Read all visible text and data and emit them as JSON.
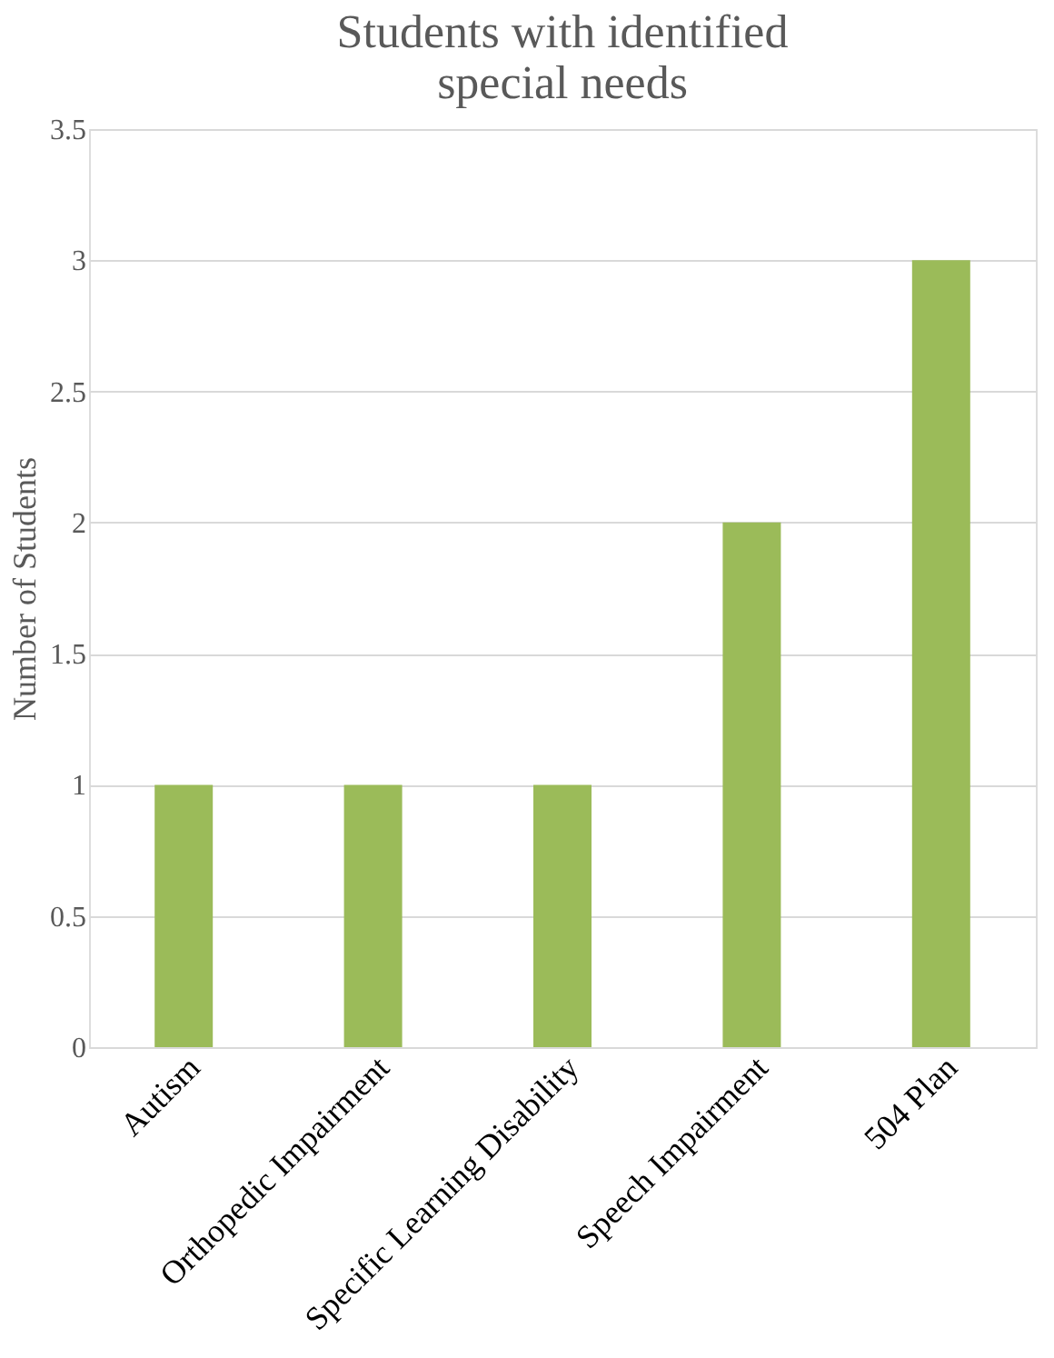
{
  "chart_data": {
    "type": "bar",
    "title": "Students with identified\nspecial needs",
    "ylabel": "Number of Students",
    "categories": [
      "Autism",
      "Orthopedic Impairment",
      "Specific Learning Disability",
      "Speech Impairment",
      "504 Plan"
    ],
    "values": [
      1,
      1,
      1,
      2,
      3
    ],
    "color": "#9bbb59",
    "ylim": [
      0,
      3.5
    ],
    "yticks": [
      0,
      0.5,
      1,
      1.5,
      2,
      2.5,
      3,
      3.5
    ],
    "grid": "y"
  }
}
